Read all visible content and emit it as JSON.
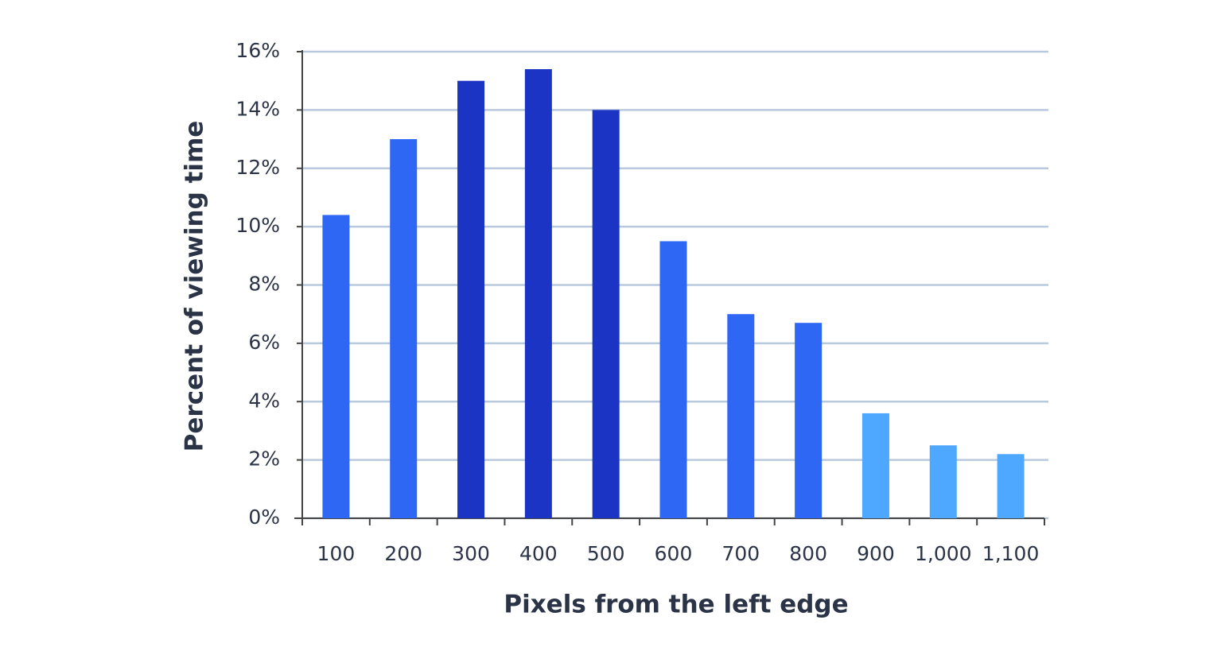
{
  "chart_data": {
    "type": "bar",
    "x_label": "Pixels from the left edge",
    "y_label": "Percent of viewing time",
    "categories": [
      "100",
      "200",
      "300",
      "400",
      "500",
      "600",
      "700",
      "800",
      "900",
      "1,000",
      "1,100"
    ],
    "values": [
      10.4,
      13.0,
      15.0,
      15.4,
      14.0,
      9.5,
      7.0,
      6.7,
      3.6,
      2.5,
      2.2
    ],
    "colors": [
      "#2f67f5",
      "#2f67f5",
      "#1c34c4",
      "#1c34c4",
      "#1c34c4",
      "#2f67f5",
      "#2f67f5",
      "#2f67f5",
      "#4fa8ff",
      "#4fa8ff",
      "#4fa8ff"
    ],
    "ylim": [
      0,
      16
    ],
    "yticks": [
      {
        "value": 0,
        "label": "0%"
      },
      {
        "value": 2,
        "label": "2%"
      },
      {
        "value": 4,
        "label": "4%"
      },
      {
        "value": 6,
        "label": "6%"
      },
      {
        "value": 8,
        "label": "8%"
      },
      {
        "value": 10,
        "label": "10%"
      },
      {
        "value": 12,
        "label": "12%"
      },
      {
        "value": 14,
        "label": "14%"
      },
      {
        "value": 16,
        "label": "16%"
      }
    ],
    "grid": true
  }
}
